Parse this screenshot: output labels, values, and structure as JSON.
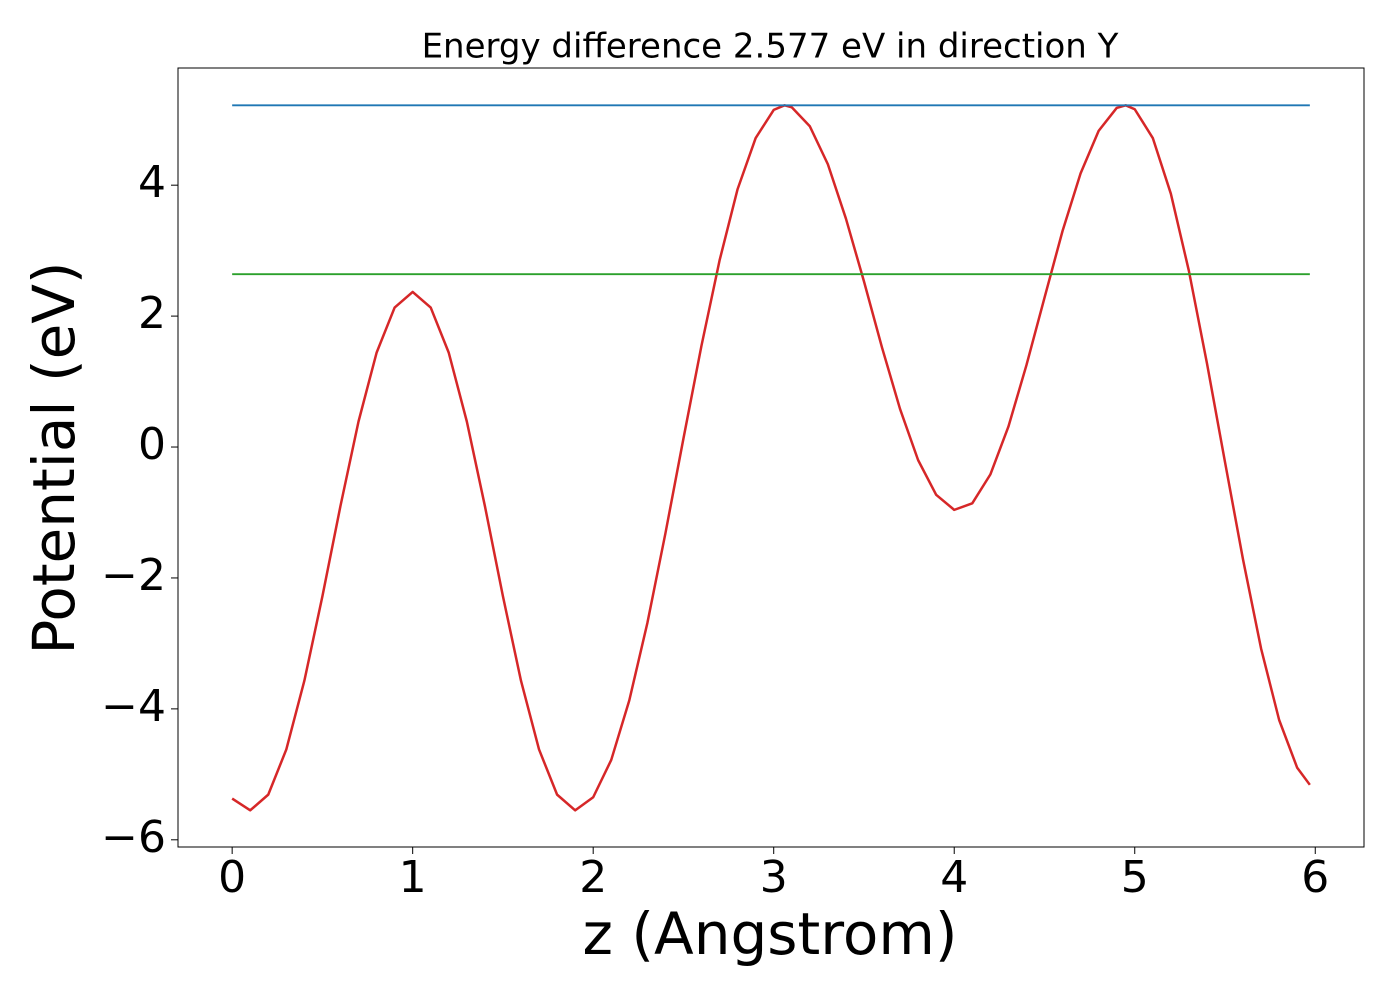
{
  "chart_data": {
    "type": "line",
    "title": "Energy difference 2.577 eV in direction Y",
    "x_label": "z (Angstrom)",
    "y_label": "Potential (eV)",
    "xlim": [
      -0.3,
      6.27
    ],
    "ylim": [
      -6.11,
      5.79
    ],
    "xticks": [
      0,
      1,
      2,
      3,
      4,
      5,
      6
    ],
    "yticks": [
      {
        "value": -6,
        "label": "−6"
      },
      {
        "value": -4,
        "label": "−4"
      },
      {
        "value": -2,
        "label": "−2"
      },
      0,
      2,
      4
    ],
    "grid": false,
    "series": [
      {
        "color": "#d62728",
        "x": [
          0,
          0.1,
          0.2,
          0.3,
          0.4,
          0.5,
          0.6,
          0.7,
          0.8,
          0.9,
          1.0,
          1.1,
          1.2,
          1.3,
          1.4,
          1.5,
          1.6,
          1.7,
          1.8,
          1.9,
          2.0,
          2.1,
          2.2,
          2.3,
          2.4,
          2.5,
          2.6,
          2.7,
          2.8,
          2.9,
          3.0,
          3.06,
          3.1,
          3.2,
          3.3,
          3.4,
          3.5,
          3.6,
          3.7,
          3.8,
          3.9,
          4.0,
          4.1,
          4.2,
          4.3,
          4.4,
          4.5,
          4.6,
          4.7,
          4.8,
          4.9,
          4.95,
          5.0,
          5.1,
          5.2,
          5.3,
          5.4,
          5.5,
          5.6,
          5.7,
          5.8,
          5.9,
          5.97
        ],
        "values": [
          -5.37,
          -5.55,
          -5.31,
          -4.62,
          -3.57,
          -2.28,
          -0.9,
          0.39,
          1.44,
          2.13,
          2.37,
          2.13,
          1.44,
          0.39,
          -0.9,
          -2.28,
          -3.57,
          -4.62,
          -5.31,
          -5.55,
          -5.35,
          -4.78,
          -3.87,
          -2.69,
          -1.32,
          0.13,
          1.55,
          2.85,
          3.94,
          4.72,
          5.15,
          5.22,
          5.19,
          4.9,
          4.32,
          3.49,
          2.53,
          1.52,
          0.58,
          -0.2,
          -0.73,
          -0.96,
          -0.86,
          -0.42,
          0.31,
          1.25,
          2.28,
          3.3,
          4.18,
          4.83,
          5.18,
          5.22,
          5.16,
          4.72,
          3.87,
          2.69,
          1.28,
          -0.23,
          -1.72,
          -3.08,
          -4.17,
          -4.9,
          -5.16
        ]
      },
      {
        "color": "#1f77b4",
        "x": [
          0,
          5.97
        ],
        "values": [
          5.22,
          5.22
        ]
      },
      {
        "color": "#2ca02c",
        "x": [
          0,
          5.97
        ],
        "values": [
          2.64,
          2.64
        ]
      }
    ]
  }
}
